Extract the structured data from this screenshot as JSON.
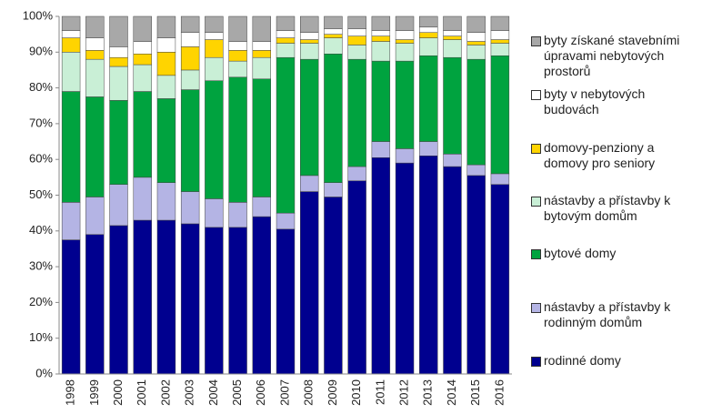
{
  "chart_data": {
    "type": "stacked_bar",
    "categories": [
      "1998",
      "1999",
      "2000",
      "2001",
      "2002",
      "2003",
      "2004",
      "2005",
      "2006",
      "2007",
      "2008",
      "2009",
      "2010",
      "2011",
      "2012",
      "2013",
      "2014",
      "2015",
      "2016"
    ],
    "series": [
      {
        "name": "rodinné domy",
        "color": "#00008f",
        "values": [
          37.5,
          39,
          41.5,
          43,
          43,
          42,
          41,
          41,
          44,
          40.5,
          51,
          49.5,
          54,
          60.5,
          59,
          61,
          58,
          55.5,
          53
        ]
      },
      {
        "name": "nástavby a přístavby k rodinným domům",
        "color": "#b4b4e4",
        "values": [
          10.5,
          10.5,
          11.5,
          12,
          10.5,
          9,
          8,
          7,
          5.5,
          4.5,
          4.5,
          4,
          4,
          4.5,
          4,
          4,
          3.5,
          3,
          3
        ]
      },
      {
        "name": "bytové domy",
        "color": "#00a33f",
        "values": [
          31,
          28,
          23.5,
          24,
          23.5,
          28.5,
          33,
          35,
          33,
          43.5,
          32.5,
          36,
          30,
          22.5,
          24.5,
          24,
          27,
          29.5,
          33
        ]
      },
      {
        "name": "nástavby a přístavby k bytovým domům",
        "color": "#c9efd6",
        "values": [
          11,
          10.5,
          9.5,
          7.5,
          6.5,
          5.5,
          6.5,
          4.5,
          6,
          4,
          4.5,
          4.5,
          4,
          5.5,
          5,
          5,
          5,
          4,
          3.5
        ]
      },
      {
        "name": "domovy-penziony a domovy pro seniory",
        "color": "#ffd400",
        "values": [
          4,
          2.5,
          2.5,
          3,
          6.5,
          6.5,
          5,
          3,
          2,
          1.5,
          1,
          1,
          2.5,
          1.5,
          1,
          1.5,
          1,
          1,
          1
        ]
      },
      {
        "name": "byty v nebytových budovách",
        "color": "#ffffff",
        "values": [
          2,
          3.5,
          3,
          3.5,
          4,
          4,
          2,
          2.5,
          2.5,
          2,
          2,
          1.5,
          2,
          1.5,
          2.5,
          1.5,
          1.5,
          2.5,
          2.5
        ]
      },
      {
        "name": "byty získané stavebními úpravami nebytových prostorů",
        "color": "#a8a8a8",
        "values": [
          4,
          6,
          8.5,
          7,
          6,
          4.5,
          4.5,
          7,
          7,
          4,
          4.5,
          3.5,
          3.5,
          4,
          4,
          3,
          4,
          4.5,
          4
        ]
      }
    ],
    "ylim": [
      0,
      100
    ],
    "yticks": [
      {
        "value": 0,
        "label": "0%"
      },
      {
        "value": 10,
        "label": "10%"
      },
      {
        "value": 20,
        "label": "20%"
      },
      {
        "value": 30,
        "label": "30%"
      },
      {
        "value": 40,
        "label": "40%"
      },
      {
        "value": 50,
        "label": "50%"
      },
      {
        "value": 60,
        "label": "60%"
      },
      {
        "value": 70,
        "label": "70%"
      },
      {
        "value": 80,
        "label": "80%"
      },
      {
        "value": 90,
        "label": "90%"
      },
      {
        "value": 100,
        "label": "100%"
      }
    ]
  }
}
